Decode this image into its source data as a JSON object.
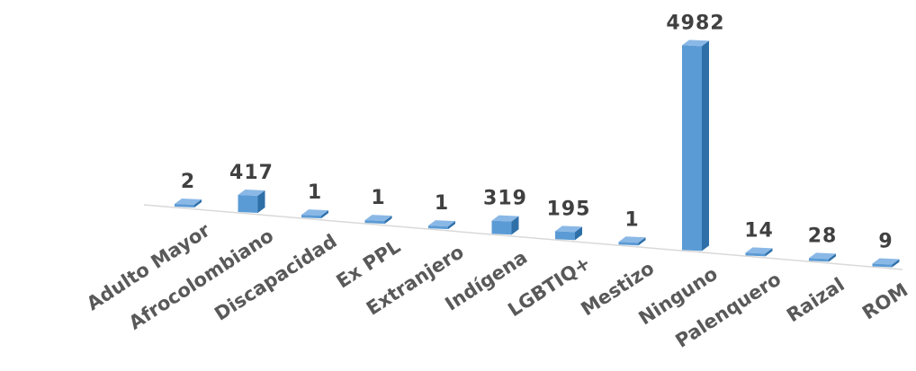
{
  "chart_data": {
    "type": "bar",
    "style": "3d-perspective",
    "title": "",
    "xlabel": "",
    "ylabel": "",
    "categories": [
      "Adulto Mayor",
      "Afrocolombiano",
      "Discapacidad",
      "Ex PPL",
      "Extranjero",
      "Indígena",
      "LGBTIQ+",
      "Mestizo",
      "Ninguno",
      "Palenquero",
      "Raizal",
      "ROM"
    ],
    "values": [
      2,
      417,
      1,
      1,
      1,
      319,
      195,
      1,
      4982,
      14,
      28,
      9
    ],
    "data_labels": [
      "2",
      "417",
      "1",
      "1",
      "1",
      "319",
      "195",
      "1",
      "4982",
      "14",
      "28",
      "9"
    ],
    "ylim": [
      0,
      4982
    ],
    "grid": false,
    "legend": "none",
    "colors": {
      "bar_front": "#5b9bd5",
      "bar_side": "#2e6fa8",
      "bar_top": "#8ab8e6",
      "axis": "#d9d9d9",
      "label": "#404040",
      "category": "#595959"
    }
  }
}
